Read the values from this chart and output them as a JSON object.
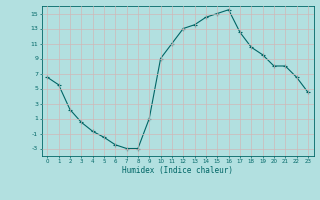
{
  "title": "",
  "xlabel": "Humidex (Indice chaleur)",
  "ylabel": "",
  "background_color": "#b2e0e0",
  "grid_color": "#c8e8e8",
  "line_color": "#006666",
  "marker_color": "#006666",
  "x": [
    0,
    1,
    2,
    3,
    4,
    5,
    6,
    7,
    8,
    9,
    10,
    11,
    12,
    13,
    14,
    15,
    16,
    17,
    18,
    19,
    20,
    21,
    22,
    23
  ],
  "y": [
    6.5,
    5.5,
    2.2,
    0.5,
    -0.7,
    -1.5,
    -2.5,
    -3.0,
    -3.0,
    1.0,
    9.0,
    11.0,
    13.0,
    13.5,
    14.5,
    15.0,
    15.5,
    12.5,
    10.5,
    9.5,
    8.0,
    8.0,
    6.5,
    4.5
  ],
  "ylim": [
    -4,
    16
  ],
  "xlim": [
    -0.5,
    23.5
  ],
  "yticks": [
    -3,
    -1,
    1,
    3,
    5,
    7,
    9,
    11,
    13,
    15
  ],
  "xticks": [
    0,
    1,
    2,
    3,
    4,
    5,
    6,
    7,
    8,
    9,
    10,
    11,
    12,
    13,
    14,
    15,
    16,
    17,
    18,
    19,
    20,
    21,
    22,
    23
  ],
  "figsize": [
    3.2,
    2.0
  ],
  "dpi": 100
}
